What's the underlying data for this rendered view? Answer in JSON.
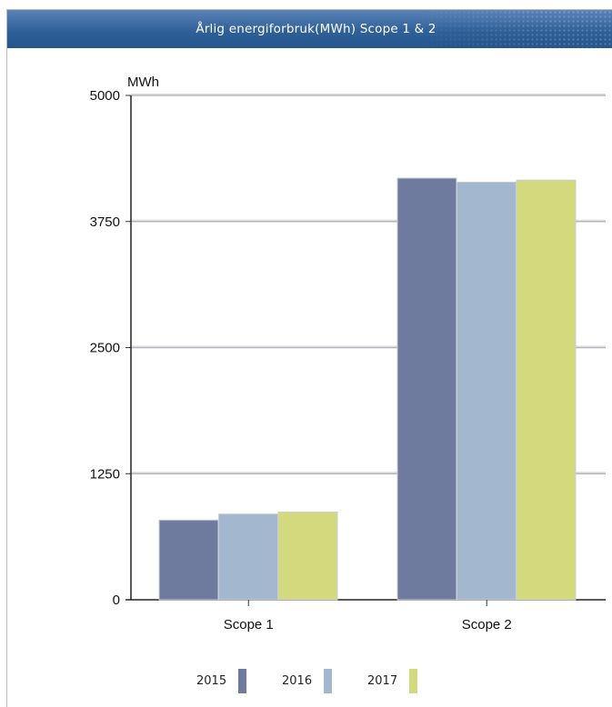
{
  "header": {
    "title": "Årlig energiforbruk(MWh) Scope 1 & 2"
  },
  "colors": {
    "2015": "#6f7b9e",
    "2016": "#a3b8cf",
    "2017": "#d2da7d",
    "title_bar": "#2f6098"
  },
  "chart_data": {
    "type": "bar",
    "title": "Årlig energiforbruk(MWh) Scope 1 & 2",
    "ylabel": "MWh",
    "xlabel": "",
    "categories": [
      "Scope 1",
      "Scope 2"
    ],
    "series": [
      {
        "name": "2015",
        "values": [
          790,
          4180
        ]
      },
      {
        "name": "2016",
        "values": [
          850,
          4140
        ]
      },
      {
        "name": "2017",
        "values": [
          870,
          4160
        ]
      }
    ],
    "ylim": [
      0,
      5000
    ],
    "yticks": [
      "0",
      "1250",
      "2500",
      "3750",
      "5000"
    ],
    "grid": true,
    "legend_position": "bottom"
  }
}
